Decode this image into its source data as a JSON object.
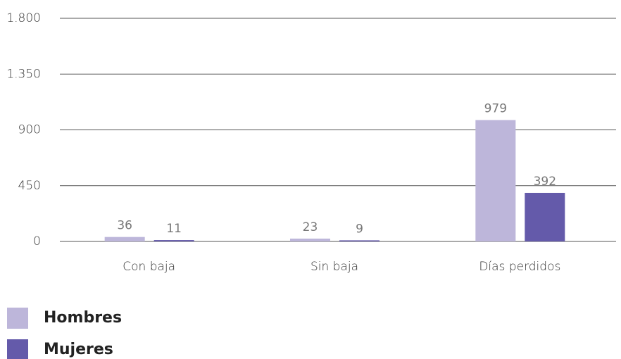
{
  "chart_data": {
    "type": "bar",
    "categories": [
      "Con baja",
      "Sin baja",
      "Días perdidos"
    ],
    "series": [
      {
        "name": "Hombres",
        "color": "#bdb6da",
        "values": [
          36,
          23,
          979
        ]
      },
      {
        "name": "Mujeres",
        "color": "#645aaa",
        "values": [
          11,
          9,
          392
        ]
      }
    ],
    "ylim": [
      0,
      1800
    ],
    "yticks": [
      0,
      450,
      900,
      {
        "value": 1350,
        "label": "1.350"
      },
      {
        "value": 1800,
        "label": "1.800"
      }
    ],
    "grid": true
  }
}
